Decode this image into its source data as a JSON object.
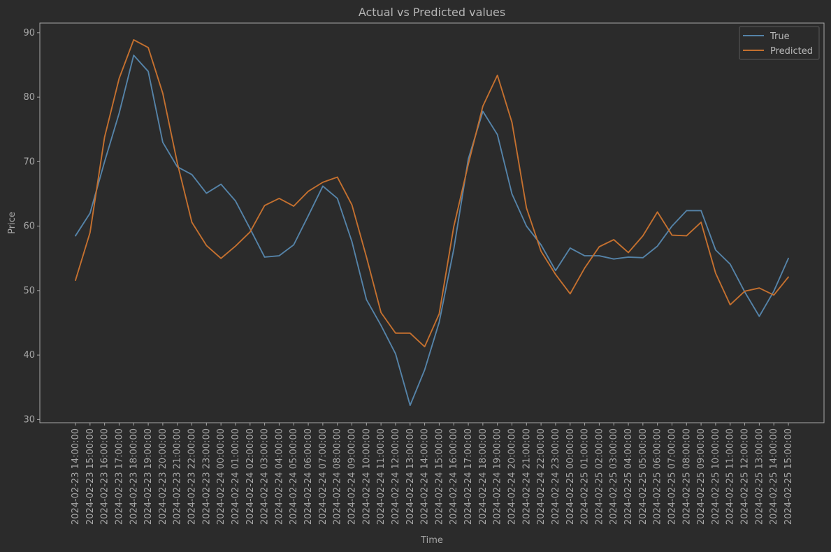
{
  "chart_data": {
    "type": "line",
    "title": "Actual vs Predicted values",
    "xlabel": "Time",
    "ylabel": "Price",
    "ylim": [
      29.5,
      91.5
    ],
    "yticks": [
      30,
      40,
      50,
      60,
      70,
      80,
      90
    ],
    "grid": false,
    "legend": "top-right",
    "x": [
      "2024-02-23 14:00:00",
      "2024-02-23 15:00:00",
      "2024-02-23 16:00:00",
      "2024-02-23 17:00:00",
      "2024-02-23 18:00:00",
      "2024-02-23 19:00:00",
      "2024-02-23 20:00:00",
      "2024-02-23 21:00:00",
      "2024-02-23 22:00:00",
      "2024-02-23 23:00:00",
      "2024-02-24 00:00:00",
      "2024-02-24 01:00:00",
      "2024-02-24 02:00:00",
      "2024-02-24 03:00:00",
      "2024-02-24 04:00:00",
      "2024-02-24 05:00:00",
      "2024-02-24 06:00:00",
      "2024-02-24 07:00:00",
      "2024-02-24 08:00:00",
      "2024-02-24 09:00:00",
      "2024-02-24 10:00:00",
      "2024-02-24 11:00:00",
      "2024-02-24 12:00:00",
      "2024-02-24 13:00:00",
      "2024-02-24 14:00:00",
      "2024-02-24 15:00:00",
      "2024-02-24 16:00:00",
      "2024-02-24 17:00:00",
      "2024-02-24 18:00:00",
      "2024-02-24 19:00:00",
      "2024-02-24 20:00:00",
      "2024-02-24 21:00:00",
      "2024-02-24 22:00:00",
      "2024-02-24 23:00:00",
      "2024-02-25 00:00:00",
      "2024-02-25 01:00:00",
      "2024-02-25 02:00:00",
      "2024-02-25 03:00:00",
      "2024-02-25 04:00:00",
      "2024-02-25 05:00:00",
      "2024-02-25 06:00:00",
      "2024-02-25 07:00:00",
      "2024-02-25 08:00:00",
      "2024-02-25 09:00:00",
      "2024-02-25 10:00:00",
      "2024-02-25 11:00:00",
      "2024-02-25 12:00:00",
      "2024-02-25 13:00:00",
      "2024-02-25 14:00:00",
      "2024-02-25 15:00:00"
    ],
    "series": [
      {
        "name": "True",
        "color": "#5583a8",
        "values": [
          58.5,
          62.0,
          70.0,
          77.5,
          86.5,
          84.0,
          73.0,
          69.2,
          68.0,
          65.1,
          66.5,
          63.9,
          59.6,
          55.2,
          55.4,
          57.1,
          61.6,
          66.2,
          64.3,
          57.6,
          48.6,
          44.6,
          40.2,
          32.2,
          37.7,
          45.1,
          56.4,
          70.4,
          77.8,
          74.2,
          65.0,
          60.0,
          57.1,
          53.1,
          56.6,
          55.4,
          55.4,
          54.9,
          55.2,
          55.1,
          56.9,
          60.0,
          62.4,
          62.4,
          56.3,
          54.1,
          49.8,
          46.0,
          49.9,
          55.0
        ]
      },
      {
        "name": "Predicted",
        "color": "#c4702f",
        "values": [
          51.6,
          59.0,
          73.8,
          82.9,
          88.9,
          87.7,
          80.6,
          69.8,
          60.6,
          57.0,
          55.0,
          56.9,
          59.1,
          63.2,
          64.3,
          63.1,
          65.4,
          66.8,
          67.6,
          63.3,
          55.2,
          46.6,
          43.4,
          43.4,
          41.3,
          46.4,
          59.9,
          69.6,
          78.6,
          83.4,
          76.1,
          62.8,
          56.1,
          52.5,
          49.5,
          53.5,
          56.8,
          57.9,
          55.9,
          58.5,
          62.2,
          58.6,
          58.5,
          60.6,
          52.7,
          47.8,
          49.9,
          50.4,
          49.3,
          52.1
        ]
      }
    ]
  }
}
